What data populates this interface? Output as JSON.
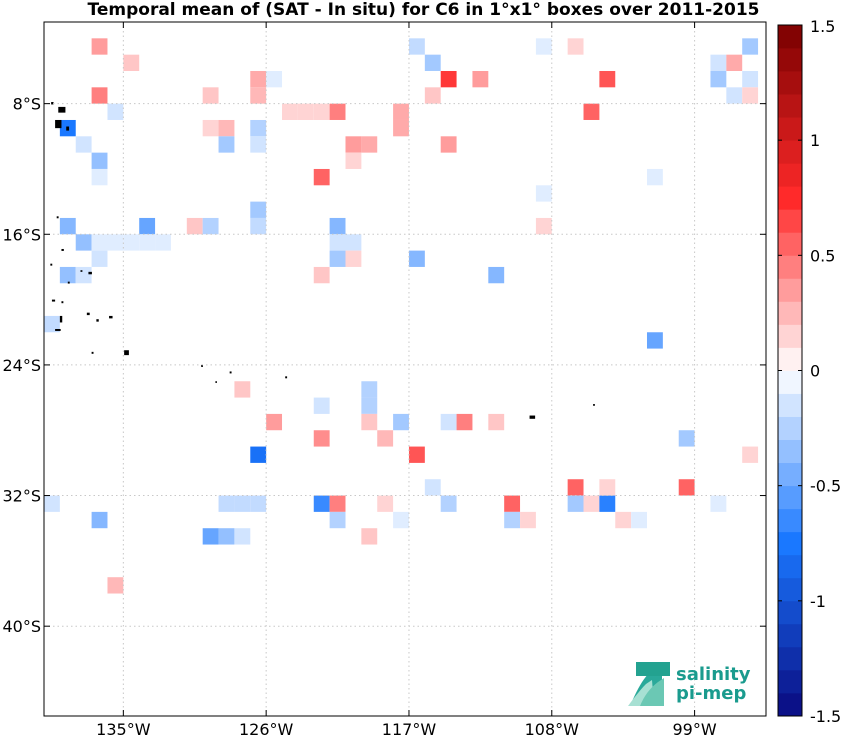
{
  "chart_data": {
    "type": "heatmap",
    "title": "Temporal mean of (SAT - In situ) for C6 in 1°x1° boxes over 2011-2015",
    "xlim": [
      -140.0,
      -94.5
    ],
    "ylim": [
      -45.5,
      -3.0
    ],
    "x_ticks": [
      {
        "value": -135,
        "label": "135°W"
      },
      {
        "value": -126,
        "label": "126°W"
      },
      {
        "value": -117,
        "label": "117°W"
      },
      {
        "value": -108,
        "label": "108°W"
      },
      {
        "value": -99,
        "label": "99°W"
      }
    ],
    "y_ticks": [
      {
        "value": -8,
        "label": "8°S"
      },
      {
        "value": -16,
        "label": "16°S"
      },
      {
        "value": -24,
        "label": "24°S"
      },
      {
        "value": -32,
        "label": "32°S"
      },
      {
        "value": -40,
        "label": "40°S"
      }
    ],
    "grid": true,
    "colorbar": {
      "range": [
        -1.5,
        1.5
      ],
      "step": 0.1,
      "ticks": [
        {
          "value": 1.5,
          "label": "1.5"
        },
        {
          "value": 1,
          "label": "1"
        },
        {
          "value": 0.5,
          "label": "0.5"
        },
        {
          "value": 0,
          "label": "0"
        },
        {
          "value": -0.5,
          "label": "-0.5"
        },
        {
          "value": -1,
          "label": "-1"
        },
        {
          "value": -1.5,
          "label": "-1.5"
        }
      ]
    },
    "colors": {
      "negative_extreme": "#0a0a80",
      "negative_mid": "#1a78ff",
      "positive_mid": "#ff2a2a",
      "positive_extreme": "#7a0000",
      "land": "#000000",
      "grid": "#c8c8c8"
    },
    "cells": [
      {
        "lon": -136.5,
        "lat": -4.5,
        "value": 0.35
      },
      {
        "lon": -134.5,
        "lat": -5.5,
        "value": 0.2
      },
      {
        "lon": -126.5,
        "lat": -6.5,
        "value": 0.3
      },
      {
        "lon": -125.5,
        "lat": -6.5,
        "value": -0.1
      },
      {
        "lon": -136.5,
        "lat": -7.5,
        "value": 0.45
      },
      {
        "lon": -135.5,
        "lat": -8.5,
        "value": -0.15
      },
      {
        "lon": -129.5,
        "lat": -7.5,
        "value": 0.2
      },
      {
        "lon": -126.5,
        "lat": -7.5,
        "value": 0.25
      },
      {
        "lon": -124.5,
        "lat": -8.5,
        "value": 0.15
      },
      {
        "lon": -123.5,
        "lat": -8.5,
        "value": 0.15
      },
      {
        "lon": -122.5,
        "lat": -8.5,
        "value": 0.15
      },
      {
        "lon": -121.5,
        "lat": -8.5,
        "value": 0.45
      },
      {
        "lon": -117.5,
        "lat": -8.5,
        "value": 0.3
      },
      {
        "lon": -117.5,
        "lat": -9.5,
        "value": 0.3
      },
      {
        "lon": -129.5,
        "lat": -9.5,
        "value": 0.15
      },
      {
        "lon": -128.5,
        "lat": -9.5,
        "value": 0.25
      },
      {
        "lon": -126.5,
        "lat": -9.5,
        "value": -0.25
      },
      {
        "lon": -138.5,
        "lat": -9.5,
        "value": -0.75
      },
      {
        "lon": -137.5,
        "lat": -10.5,
        "value": -0.15
      },
      {
        "lon": -128.5,
        "lat": -10.5,
        "value": -0.3
      },
      {
        "lon": -126.5,
        "lat": -10.5,
        "value": -0.15
      },
      {
        "lon": -120.5,
        "lat": -10.5,
        "value": 0.35
      },
      {
        "lon": -119.5,
        "lat": -10.5,
        "value": 0.3
      },
      {
        "lon": -114.5,
        "lat": -10.5,
        "value": 0.35
      },
      {
        "lon": -136.5,
        "lat": -11.5,
        "value": -0.35
      },
      {
        "lon": -120.5,
        "lat": -11.5,
        "value": 0.15
      },
      {
        "lon": -136.5,
        "lat": -12.5,
        "value": -0.1
      },
      {
        "lon": -122.5,
        "lat": -12.5,
        "value": 0.55
      },
      {
        "lon": -116.5,
        "lat": -4.5,
        "value": -0.2
      },
      {
        "lon": -115.5,
        "lat": -5.5,
        "value": -0.3
      },
      {
        "lon": -114.5,
        "lat": -6.5,
        "value": 0.7
      },
      {
        "lon": -112.5,
        "lat": -6.5,
        "value": 0.35
      },
      {
        "lon": -115.5,
        "lat": -7.5,
        "value": 0.2
      },
      {
        "lon": -106.5,
        "lat": -4.5,
        "value": 0.15
      },
      {
        "lon": -108.5,
        "lat": -4.5,
        "value": -0.1
      },
      {
        "lon": -104.5,
        "lat": -6.5,
        "value": 0.6
      },
      {
        "lon": -105.5,
        "lat": -8.5,
        "value": 0.55
      },
      {
        "lon": -97.5,
        "lat": -5.5,
        "value": -0.15
      },
      {
        "lon": -96.5,
        "lat": -5.5,
        "value": 0.3
      },
      {
        "lon": -95.5,
        "lat": -4.5,
        "value": -0.3
      },
      {
        "lon": -97.5,
        "lat": -6.5,
        "value": -0.3
      },
      {
        "lon": -95.5,
        "lat": -6.5,
        "value": -0.15
      },
      {
        "lon": -96.5,
        "lat": -7.5,
        "value": -0.15
      },
      {
        "lon": -95.5,
        "lat": -7.5,
        "value": 0.15
      },
      {
        "lon": -101.5,
        "lat": -12.5,
        "value": -0.1
      },
      {
        "lon": -108.5,
        "lat": -13.5,
        "value": -0.1
      },
      {
        "lon": -108.5,
        "lat": -15.5,
        "value": 0.15
      },
      {
        "lon": -138.5,
        "lat": -15.5,
        "value": -0.4
      },
      {
        "lon": -133.5,
        "lat": -15.5,
        "value": -0.5
      },
      {
        "lon": -130.5,
        "lat": -15.5,
        "value": 0.2
      },
      {
        "lon": -129.5,
        "lat": -15.5,
        "value": -0.25
      },
      {
        "lon": -126.5,
        "lat": -14.5,
        "value": -0.3
      },
      {
        "lon": -126.5,
        "lat": -15.5,
        "value": -0.2
      },
      {
        "lon": -137.5,
        "lat": -16.5,
        "value": -0.35
      },
      {
        "lon": -136.5,
        "lat": -16.5,
        "value": -0.1
      },
      {
        "lon": -135.5,
        "lat": -16.5,
        "value": -0.1
      },
      {
        "lon": -134.5,
        "lat": -16.5,
        "value": -0.1
      },
      {
        "lon": -133.5,
        "lat": -16.5,
        "value": -0.1
      },
      {
        "lon": -132.5,
        "lat": -16.5,
        "value": -0.1
      },
      {
        "lon": -136.5,
        "lat": -17.5,
        "value": -0.15
      },
      {
        "lon": -121.5,
        "lat": -15.5,
        "value": -0.4
      },
      {
        "lon": -120.5,
        "lat": -16.5,
        "value": -0.15
      },
      {
        "lon": -121.5,
        "lat": -16.5,
        "value": -0.15
      },
      {
        "lon": -121.5,
        "lat": -17.5,
        "value": -0.3
      },
      {
        "lon": -120.5,
        "lat": -17.5,
        "value": 0.15
      },
      {
        "lon": -116.5,
        "lat": -17.5,
        "value": -0.4
      },
      {
        "lon": -138.5,
        "lat": -18.5,
        "value": -0.35
      },
      {
        "lon": -137.5,
        "lat": -18.5,
        "value": -0.15
      },
      {
        "lon": -122.5,
        "lat": -18.5,
        "value": 0.2
      },
      {
        "lon": -111.5,
        "lat": -18.5,
        "value": -0.4
      },
      {
        "lon": -139.5,
        "lat": -21.5,
        "value": -0.2
      },
      {
        "lon": -101.5,
        "lat": -22.5,
        "value": -0.5
      },
      {
        "lon": -127.5,
        "lat": -25.5,
        "value": 0.2
      },
      {
        "lon": -119.5,
        "lat": -25.5,
        "value": -0.25
      },
      {
        "lon": -119.5,
        "lat": -26.5,
        "value": -0.25
      },
      {
        "lon": -122.5,
        "lat": -26.5,
        "value": -0.15
      },
      {
        "lon": -119.5,
        "lat": -27.5,
        "value": 0.2
      },
      {
        "lon": -117.5,
        "lat": -27.5,
        "value": -0.3
      },
      {
        "lon": -114.5,
        "lat": -27.5,
        "value": -0.15
      },
      {
        "lon": -113.5,
        "lat": -27.5,
        "value": 0.45
      },
      {
        "lon": -111.5,
        "lat": -27.5,
        "value": 0.2
      },
      {
        "lon": -125.5,
        "lat": -27.5,
        "value": 0.35
      },
      {
        "lon": -122.5,
        "lat": -28.5,
        "value": 0.4
      },
      {
        "lon": -118.5,
        "lat": -28.5,
        "value": 0.25
      },
      {
        "lon": -116.5,
        "lat": -29.5,
        "value": 0.6
      },
      {
        "lon": -126.5,
        "lat": -29.5,
        "value": -0.8
      },
      {
        "lon": -99.5,
        "lat": -28.5,
        "value": -0.3
      },
      {
        "lon": -95.5,
        "lat": -29.5,
        "value": 0.15
      },
      {
        "lon": -141.5,
        "lat": -28.5,
        "value": -0.15
      },
      {
        "lon": -140.5,
        "lat": -29.5,
        "value": -0.15
      },
      {
        "lon": -141.5,
        "lat": -31.5,
        "value": -0.2
      },
      {
        "lon": -139.5,
        "lat": -32.5,
        "value": -0.15
      },
      {
        "lon": -136.5,
        "lat": -33.5,
        "value": -0.4
      },
      {
        "lon": -128.5,
        "lat": -32.5,
        "value": -0.2
      },
      {
        "lon": -127.5,
        "lat": -32.5,
        "value": -0.2
      },
      {
        "lon": -126.5,
        "lat": -32.5,
        "value": -0.2
      },
      {
        "lon": -129.5,
        "lat": -34.5,
        "value": -0.5
      },
      {
        "lon": -128.5,
        "lat": -34.5,
        "value": -0.35
      },
      {
        "lon": -127.5,
        "lat": -34.5,
        "value": -0.15
      },
      {
        "lon": -122.5,
        "lat": -32.5,
        "value": -0.65
      },
      {
        "lon": -121.5,
        "lat": -32.5,
        "value": 0.45
      },
      {
        "lon": -121.5,
        "lat": -33.5,
        "value": -0.25
      },
      {
        "lon": -119.5,
        "lat": -34.5,
        "value": 0.2
      },
      {
        "lon": -118.5,
        "lat": -32.5,
        "value": 0.15
      },
      {
        "lon": -117.5,
        "lat": -33.5,
        "value": -0.1
      },
      {
        "lon": -115.5,
        "lat": -31.5,
        "value": -0.15
      },
      {
        "lon": -114.5,
        "lat": -32.5,
        "value": -0.25
      },
      {
        "lon": -110.5,
        "lat": -32.5,
        "value": 0.55
      },
      {
        "lon": -110.5,
        "lat": -33.5,
        "value": -0.25
      },
      {
        "lon": -109.5,
        "lat": -33.5,
        "value": 0.15
      },
      {
        "lon": -106.5,
        "lat": -31.5,
        "value": 0.55
      },
      {
        "lon": -105.5,
        "lat": -32.5,
        "value": 0.15
      },
      {
        "lon": -106.5,
        "lat": -32.5,
        "value": -0.3
      },
      {
        "lon": -104.5,
        "lat": -32.5,
        "value": -0.7
      },
      {
        "lon": -104.5,
        "lat": -31.5,
        "value": 0.15
      },
      {
        "lon": -103.5,
        "lat": -33.5,
        "value": 0.15
      },
      {
        "lon": -102.5,
        "lat": -33.5,
        "value": -0.1
      },
      {
        "lon": -99.5,
        "lat": -31.5,
        "value": 0.55
      },
      {
        "lon": -97.5,
        "lat": -32.5,
        "value": -0.1
      },
      {
        "lon": -135.5,
        "lat": -37.5,
        "value": 0.25
      }
    ],
    "land": [
      {
        "lon": -139.1,
        "lat": -8.2,
        "w": 0.45,
        "h": 0.35
      },
      {
        "lon": -139.3,
        "lat": -9.0,
        "w": 0.4,
        "h": 0.5
      },
      {
        "lon": -138.6,
        "lat": -9.4,
        "w": 0.18,
        "h": 0.25
      },
      {
        "lon": -139.55,
        "lat": -7.9,
        "w": 0.15,
        "h": 0.15
      },
      {
        "lon": -139.2,
        "lat": -14.9,
        "w": 0.12,
        "h": 0.12
      },
      {
        "lon": -138.9,
        "lat": -16.9,
        "w": 0.15,
        "h": 0.12
      },
      {
        "lon": -139.6,
        "lat": -17.8,
        "w": 0.12,
        "h": 0.12
      },
      {
        "lon": -137.7,
        "lat": -18.2,
        "w": 0.12,
        "h": 0.1
      },
      {
        "lon": -137.2,
        "lat": -18.3,
        "w": 0.22,
        "h": 0.15
      },
      {
        "lon": -138.5,
        "lat": -18.9,
        "w": 0.12,
        "h": 0.12
      },
      {
        "lon": -139.5,
        "lat": -20.0,
        "w": 0.2,
        "h": 0.12
      },
      {
        "lon": -138.9,
        "lat": -20.1,
        "w": 0.12,
        "h": 0.12
      },
      {
        "lon": -137.3,
        "lat": -20.8,
        "w": 0.18,
        "h": 0.15
      },
      {
        "lon": -136.7,
        "lat": -21.2,
        "w": 0.15,
        "h": 0.15
      },
      {
        "lon": -135.9,
        "lat": -21.0,
        "w": 0.22,
        "h": 0.15
      },
      {
        "lon": -139.3,
        "lat": -21.8,
        "w": 0.35,
        "h": 0.12
      },
      {
        "lon": -139.0,
        "lat": -21.0,
        "w": 0.15,
        "h": 0.4
      },
      {
        "lon": -134.95,
        "lat": -23.1,
        "w": 0.3,
        "h": 0.3
      },
      {
        "lon": -137.0,
        "lat": -23.2,
        "w": 0.12,
        "h": 0.12
      },
      {
        "lon": -130.1,
        "lat": -24.0,
        "w": 0.12,
        "h": 0.12
      },
      {
        "lon": -128.3,
        "lat": -24.4,
        "w": 0.12,
        "h": 0.12
      },
      {
        "lon": -124.8,
        "lat": -24.7,
        "w": 0.12,
        "h": 0.12
      },
      {
        "lon": -129.2,
        "lat": -25.0,
        "w": 0.1,
        "h": 0.1
      },
      {
        "lon": -109.4,
        "lat": -27.1,
        "w": 0.35,
        "h": 0.2
      },
      {
        "lon": -105.4,
        "lat": -26.4,
        "w": 0.12,
        "h": 0.1
      }
    ]
  },
  "logo": {
    "line1": "salinity",
    "line2": "pi-mep"
  }
}
